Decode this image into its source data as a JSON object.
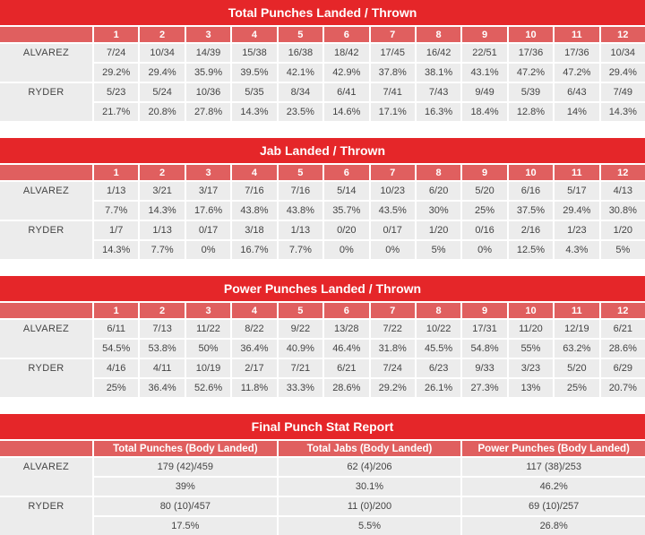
{
  "colors": {
    "page_bg": "#ffffff",
    "title_bg": "#e52629",
    "header_bg": "#e05f5f",
    "header_text": "#ffffff",
    "cell_bg": "#ececec",
    "cell_text": "#434343"
  },
  "chart_data": [
    {
      "type": "table",
      "title": "Total Punches Landed / Thrown",
      "columns": [
        "1",
        "2",
        "3",
        "4",
        "5",
        "6",
        "7",
        "8",
        "9",
        "10",
        "11",
        "12"
      ],
      "rows": [
        {
          "fighter": "ALVAREZ",
          "landed_thrown": [
            "7/24",
            "10/34",
            "14/39",
            "15/38",
            "16/38",
            "18/42",
            "17/45",
            "16/42",
            "22/51",
            "17/36",
            "17/36",
            "10/34"
          ],
          "pct": [
            "29.2%",
            "29.4%",
            "35.9%",
            "39.5%",
            "42.1%",
            "42.9%",
            "37.8%",
            "38.1%",
            "43.1%",
            "47.2%",
            "47.2%",
            "29.4%"
          ]
        },
        {
          "fighter": "RYDER",
          "landed_thrown": [
            "5/23",
            "5/24",
            "10/36",
            "5/35",
            "8/34",
            "6/41",
            "7/41",
            "7/43",
            "9/49",
            "5/39",
            "6/43",
            "7/49"
          ],
          "pct": [
            "21.7%",
            "20.8%",
            "27.8%",
            "14.3%",
            "23.5%",
            "14.6%",
            "17.1%",
            "16.3%",
            "18.4%",
            "12.8%",
            "14%",
            "14.3%"
          ]
        }
      ]
    },
    {
      "type": "table",
      "title": "Jab Landed / Thrown",
      "columns": [
        "1",
        "2",
        "3",
        "4",
        "5",
        "6",
        "7",
        "8",
        "9",
        "10",
        "11",
        "12"
      ],
      "rows": [
        {
          "fighter": "ALVAREZ",
          "landed_thrown": [
            "1/13",
            "3/21",
            "3/17",
            "7/16",
            "7/16",
            "5/14",
            "10/23",
            "6/20",
            "5/20",
            "6/16",
            "5/17",
            "4/13"
          ],
          "pct": [
            "7.7%",
            "14.3%",
            "17.6%",
            "43.8%",
            "43.8%",
            "35.7%",
            "43.5%",
            "30%",
            "25%",
            "37.5%",
            "29.4%",
            "30.8%"
          ]
        },
        {
          "fighter": "RYDER",
          "landed_thrown": [
            "1/7",
            "1/13",
            "0/17",
            "3/18",
            "1/13",
            "0/20",
            "0/17",
            "1/20",
            "0/16",
            "2/16",
            "1/23",
            "1/20"
          ],
          "pct": [
            "14.3%",
            "7.7%",
            "0%",
            "16.7%",
            "7.7%",
            "0%",
            "0%",
            "5%",
            "0%",
            "12.5%",
            "4.3%",
            "5%"
          ]
        }
      ]
    },
    {
      "type": "table",
      "title": "Power Punches Landed / Thrown",
      "columns": [
        "1",
        "2",
        "3",
        "4",
        "5",
        "6",
        "7",
        "8",
        "9",
        "10",
        "11",
        "12"
      ],
      "rows": [
        {
          "fighter": "ALVAREZ",
          "landed_thrown": [
            "6/11",
            "7/13",
            "11/22",
            "8/22",
            "9/22",
            "13/28",
            "7/22",
            "10/22",
            "17/31",
            "11/20",
            "12/19",
            "6/21"
          ],
          "pct": [
            "54.5%",
            "53.8%",
            "50%",
            "36.4%",
            "40.9%",
            "46.4%",
            "31.8%",
            "45.5%",
            "54.8%",
            "55%",
            "63.2%",
            "28.6%"
          ]
        },
        {
          "fighter": "RYDER",
          "landed_thrown": [
            "4/16",
            "4/11",
            "10/19",
            "2/17",
            "7/21",
            "6/21",
            "7/24",
            "6/23",
            "9/33",
            "3/23",
            "5/20",
            "6/29"
          ],
          "pct": [
            "25%",
            "36.4%",
            "52.6%",
            "11.8%",
            "33.3%",
            "28.6%",
            "29.2%",
            "26.1%",
            "27.3%",
            "13%",
            "25%",
            "20.7%"
          ]
        }
      ]
    },
    {
      "type": "table",
      "title": "Final Punch Stat Report",
      "columns": [
        "Total Punches (Body Landed)",
        "Total Jabs (Body Landed)",
        "Power Punches (Body Landed)"
      ],
      "rows": [
        {
          "fighter": "ALVAREZ",
          "landed_thrown": [
            "179 (42)/459",
            "62 (4)/206",
            "117 (38)/253"
          ],
          "pct": [
            "39%",
            "30.1%",
            "46.2%"
          ]
        },
        {
          "fighter": "RYDER",
          "landed_thrown": [
            "80 (10)/457",
            "11 (0)/200",
            "69 (10)/257"
          ],
          "pct": [
            "17.5%",
            "5.5%",
            "26.8%"
          ]
        }
      ]
    }
  ]
}
